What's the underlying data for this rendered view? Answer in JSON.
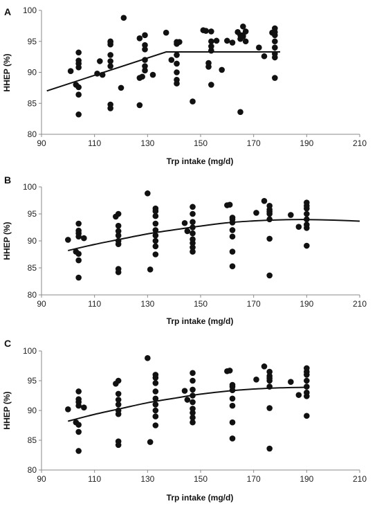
{
  "chart_data": [
    {
      "type": "scatter",
      "panel_label": "A",
      "xlabel": "Trp intake (mg/d)",
      "ylabel": "HHEP (%)",
      "xlim": [
        90,
        210
      ],
      "ylim": [
        80,
        100
      ],
      "xticks": [
        "90",
        "110",
        "130",
        "150",
        "170",
        "190",
        "210"
      ],
      "yticks": [
        "80",
        "85",
        "90",
        "95",
        "100"
      ],
      "fit": {
        "kind": "piecewise",
        "x": [
          92,
          137,
          180
        ],
        "y": [
          87.0,
          93.3,
          93.3
        ]
      },
      "points": [
        [
          101,
          90.2
        ],
        [
          103,
          88
        ],
        [
          104,
          87.6
        ],
        [
          104,
          83.2
        ],
        [
          104,
          86.4
        ],
        [
          104,
          90.8
        ],
        [
          104,
          91.4
        ],
        [
          104,
          91.9
        ],
        [
          104,
          93.2
        ],
        [
          111,
          89.8
        ],
        [
          112,
          91.8
        ],
        [
          113,
          89.6
        ],
        [
          116,
          84.2
        ],
        [
          116,
          84.8
        ],
        [
          116,
          91
        ],
        [
          116,
          91.8
        ],
        [
          116,
          92.8
        ],
        [
          116,
          94.5
        ],
        [
          116,
          94.9
        ],
        [
          116,
          95
        ],
        [
          120,
          87.5
        ],
        [
          121,
          98.8
        ],
        [
          127,
          84.7
        ],
        [
          127,
          89.1
        ],
        [
          127,
          95.5
        ],
        [
          128,
          89.3
        ],
        [
          129,
          90.3
        ],
        [
          129,
          91
        ],
        [
          129,
          92
        ],
        [
          129,
          93.7
        ],
        [
          129,
          94.4
        ],
        [
          129,
          96
        ],
        [
          132,
          89.6
        ],
        [
          137,
          96.4
        ],
        [
          139,
          92
        ],
        [
          141,
          88.2
        ],
        [
          141,
          88.8
        ],
        [
          141,
          90
        ],
        [
          141,
          91.4
        ],
        [
          141,
          92.8
        ],
        [
          141,
          94.6
        ],
        [
          141,
          94.9
        ],
        [
          142,
          94.9
        ],
        [
          147,
          85.3
        ],
        [
          151,
          96.8
        ],
        [
          152,
          96.7
        ],
        [
          153,
          90.9
        ],
        [
          153,
          91.5
        ],
        [
          154,
          88
        ],
        [
          154,
          93.5
        ],
        [
          154,
          94.2
        ],
        [
          154,
          95
        ],
        [
          154,
          96.6
        ],
        [
          156,
          95.1
        ],
        [
          158,
          90.4
        ],
        [
          160,
          95.1
        ],
        [
          162,
          94.8
        ],
        [
          164,
          96.5
        ],
        [
          165,
          83.6
        ],
        [
          165,
          95.4
        ],
        [
          165,
          96
        ],
        [
          166,
          97.4
        ],
        [
          166,
          95.8
        ],
        [
          166,
          96
        ],
        [
          167,
          95
        ],
        [
          167,
          96.6
        ],
        [
          172,
          94
        ],
        [
          174,
          92.6
        ],
        [
          177,
          96.4
        ],
        [
          178,
          89.1
        ],
        [
          178,
          92.4
        ],
        [
          178,
          93
        ],
        [
          178,
          94
        ],
        [
          178,
          95
        ],
        [
          178,
          96
        ],
        [
          178,
          96.5
        ],
        [
          178,
          97.1
        ]
      ]
    },
    {
      "type": "scatter",
      "panel_label": "B",
      "xlabel": "Trp intake (mg/d)",
      "ylabel": "HHEP (%)",
      "xlim": [
        90,
        210
      ],
      "ylim": [
        80,
        100
      ],
      "xticks": [
        "90",
        "110",
        "130",
        "150",
        "170",
        "190",
        "210"
      ],
      "yticks": [
        "80",
        "85",
        "90",
        "95",
        "100"
      ],
      "fit": {
        "kind": "curve",
        "x": [
          100,
          110,
          120,
          130,
          140,
          150,
          160,
          170,
          180,
          190,
          200,
          210
        ],
        "y": [
          88.2,
          89.35,
          90.33,
          91.3,
          92.05,
          92.75,
          93.35,
          93.7,
          93.9,
          93.95,
          93.85,
          93.65
        ]
      },
      "points": [
        [
          100,
          90.2
        ],
        [
          103,
          88
        ],
        [
          104,
          83.2
        ],
        [
          104,
          86.4
        ],
        [
          104,
          87.6
        ],
        [
          104,
          90.8
        ],
        [
          104,
          91.4
        ],
        [
          104,
          91.9
        ],
        [
          104,
          93.2
        ],
        [
          106,
          90.5
        ],
        [
          118,
          94.5
        ],
        [
          119,
          84.2
        ],
        [
          119,
          84.8
        ],
        [
          119,
          89.4
        ],
        [
          119,
          90
        ],
        [
          119,
          91
        ],
        [
          119,
          91.8
        ],
        [
          119,
          92.8
        ],
        [
          119,
          95
        ],
        [
          130,
          98.8
        ],
        [
          131,
          84.7
        ],
        [
          133,
          87.5
        ],
        [
          133,
          89
        ],
        [
          133,
          90
        ],
        [
          133,
          91
        ],
        [
          133,
          92
        ],
        [
          133,
          93.2
        ],
        [
          133,
          94.6
        ],
        [
          133,
          95.5
        ],
        [
          133,
          96
        ],
        [
          144,
          93.3
        ],
        [
          145,
          91.8
        ],
        [
          147,
          88
        ],
        [
          147,
          88.8
        ],
        [
          147,
          89.6
        ],
        [
          147,
          90.3
        ],
        [
          147,
          91.4
        ],
        [
          147,
          92.5
        ],
        [
          147,
          93.5
        ],
        [
          147,
          95
        ],
        [
          147,
          96.3
        ],
        [
          160,
          96.6
        ],
        [
          161,
          96.7
        ],
        [
          162,
          85.3
        ],
        [
          162,
          88
        ],
        [
          162,
          90.8
        ],
        [
          162,
          92
        ],
        [
          162,
          93.4
        ],
        [
          162,
          94
        ],
        [
          162,
          94.3
        ],
        [
          171,
          95.2
        ],
        [
          174,
          97.4
        ],
        [
          176,
          83.6
        ],
        [
          176,
          90.4
        ],
        [
          176,
          94
        ],
        [
          176,
          95
        ],
        [
          176,
          95.4
        ],
        [
          176,
          95.8
        ],
        [
          176,
          96.5
        ],
        [
          184,
          94.8
        ],
        [
          187,
          92.6
        ],
        [
          190,
          89.1
        ],
        [
          190,
          92.4
        ],
        [
          190,
          93
        ],
        [
          190,
          94
        ],
        [
          190,
          95
        ],
        [
          190,
          96
        ],
        [
          190,
          96.5
        ],
        [
          190,
          97.1
        ]
      ]
    },
    {
      "type": "scatter",
      "panel_label": "C",
      "xlabel": "Trp intake (mg/d)",
      "ylabel": "HHEP (%)",
      "xlim": [
        90,
        210
      ],
      "ylim": [
        80,
        100
      ],
      "xticks": [
        "90",
        "110",
        "130",
        "150",
        "170",
        "190",
        "210"
      ],
      "yticks": [
        "80",
        "85",
        "90",
        "95",
        "100"
      ],
      "fit": {
        "kind": "curve",
        "x": [
          100,
          110,
          120,
          130,
          140,
          150,
          160,
          170,
          180,
          190
        ],
        "y": [
          88.2,
          89.35,
          90.33,
          91.3,
          92.05,
          92.75,
          93.25,
          93.6,
          93.8,
          93.9
        ]
      },
      "points": [
        [
          100,
          90.2
        ],
        [
          103,
          88
        ],
        [
          104,
          83.2
        ],
        [
          104,
          86.4
        ],
        [
          104,
          87.6
        ],
        [
          104,
          90.8
        ],
        [
          104,
          91.4
        ],
        [
          104,
          91.9
        ],
        [
          104,
          93.2
        ],
        [
          106,
          90.5
        ],
        [
          118,
          94.5
        ],
        [
          119,
          84.2
        ],
        [
          119,
          84.8
        ],
        [
          119,
          89.4
        ],
        [
          119,
          90
        ],
        [
          119,
          91
        ],
        [
          119,
          91.8
        ],
        [
          119,
          92.8
        ],
        [
          119,
          95
        ],
        [
          130,
          98.8
        ],
        [
          131,
          84.7
        ],
        [
          133,
          87.5
        ],
        [
          133,
          89
        ],
        [
          133,
          90
        ],
        [
          133,
          91
        ],
        [
          133,
          92
        ],
        [
          133,
          93.2
        ],
        [
          133,
          94.6
        ],
        [
          133,
          95.5
        ],
        [
          133,
          96
        ],
        [
          144,
          93.3
        ],
        [
          145,
          91.8
        ],
        [
          147,
          88
        ],
        [
          147,
          88.8
        ],
        [
          147,
          89.6
        ],
        [
          147,
          90.3
        ],
        [
          147,
          91.4
        ],
        [
          147,
          92.5
        ],
        [
          147,
          93.5
        ],
        [
          147,
          95
        ],
        [
          147,
          96.3
        ],
        [
          160,
          96.6
        ],
        [
          161,
          96.7
        ],
        [
          162,
          85.3
        ],
        [
          162,
          88
        ],
        [
          162,
          90.8
        ],
        [
          162,
          92
        ],
        [
          162,
          93.4
        ],
        [
          162,
          94
        ],
        [
          162,
          94.3
        ],
        [
          171,
          95.2
        ],
        [
          174,
          97.4
        ],
        [
          176,
          83.6
        ],
        [
          176,
          90.4
        ],
        [
          176,
          94
        ],
        [
          176,
          95
        ],
        [
          176,
          95.4
        ],
        [
          176,
          95.8
        ],
        [
          176,
          96.5
        ],
        [
          184,
          94.8
        ],
        [
          187,
          92.6
        ],
        [
          190,
          89.1
        ],
        [
          190,
          92.4
        ],
        [
          190,
          93
        ],
        [
          190,
          94
        ],
        [
          190,
          95
        ],
        [
          190,
          96
        ],
        [
          190,
          96.5
        ],
        [
          190,
          97.1
        ]
      ]
    }
  ]
}
